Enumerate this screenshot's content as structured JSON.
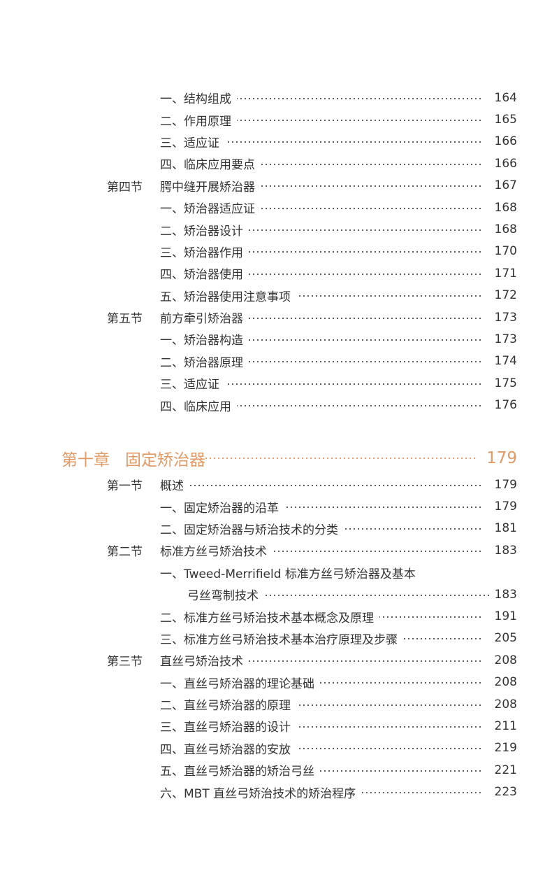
{
  "block1": [
    {
      "label": "",
      "title": "一、结构组成",
      "page": "164"
    },
    {
      "label": "",
      "title": "二、作用原理",
      "page": "165"
    },
    {
      "label": "",
      "title": "三、适应证",
      "page": "166"
    },
    {
      "label": "",
      "title": "四、临床应用要点",
      "page": "166"
    },
    {
      "label": "第四节",
      "title": "腭中缝开展矫治器",
      "page": "167"
    },
    {
      "label": "",
      "title": "一、矫治器适应证",
      "page": "168"
    },
    {
      "label": "",
      "title": "二、矫治器设计",
      "page": "168"
    },
    {
      "label": "",
      "title": "三、矫治器作用",
      "page": "170"
    },
    {
      "label": "",
      "title": "四、矫治器使用",
      "page": "171"
    },
    {
      "label": "",
      "title": "五、矫治器使用注意事项",
      "page": "172"
    },
    {
      "label": "第五节",
      "title": "前方牵引矫治器",
      "page": "173"
    },
    {
      "label": "",
      "title": "一、矫治器构造",
      "page": "173"
    },
    {
      "label": "",
      "title": "二、矫治器原理",
      "page": "174"
    },
    {
      "label": "",
      "title": "三、适应证",
      "page": "175"
    },
    {
      "label": "",
      "title": "四、临床应用",
      "page": "176"
    }
  ],
  "chapter": {
    "label": "第十章",
    "title": "固定矫治器",
    "page": "179",
    "color": "#e29a66"
  },
  "block2": [
    {
      "label": "第一节",
      "title": "概述",
      "page": "179"
    },
    {
      "label": "",
      "title": "一、固定矫治器的沿革",
      "page": "179"
    },
    {
      "label": "",
      "title": "二、固定矫治器与矫治技术的分类",
      "page": "181"
    },
    {
      "label": "第二节",
      "title": "标准方丝弓矫治技术",
      "page": "183"
    },
    {
      "label": "",
      "title": "一、Tweed-Merrifield 标准方丝弓矫治器及基本",
      "page": ""
    },
    {
      "label": "",
      "title": "弓丝弯制技术",
      "page": "183",
      "cont": true
    },
    {
      "label": "",
      "title": "二、标准方丝弓矫治技术基本概念及原理",
      "page": "191"
    },
    {
      "label": "",
      "title": "三、标准方丝弓矫治技术基本治疗原理及步骤",
      "page": "205"
    },
    {
      "label": "第三节",
      "title": "直丝弓矫治技术",
      "page": "208"
    },
    {
      "label": "",
      "title": "一、直丝弓矫治器的理论基础",
      "page": "208"
    },
    {
      "label": "",
      "title": "二、直丝弓矫治器的原理",
      "page": "208"
    },
    {
      "label": "",
      "title": "三、直丝弓矫治器的设计",
      "page": "211"
    },
    {
      "label": "",
      "title": "四、直丝弓矫治器的安放",
      "page": "219"
    },
    {
      "label": "",
      "title": "五、直丝弓矫治器的矫治弓丝",
      "page": "221"
    },
    {
      "label": "",
      "title": "六、MBT 直丝弓矫治技术的矫治程序",
      "page": "223"
    }
  ]
}
